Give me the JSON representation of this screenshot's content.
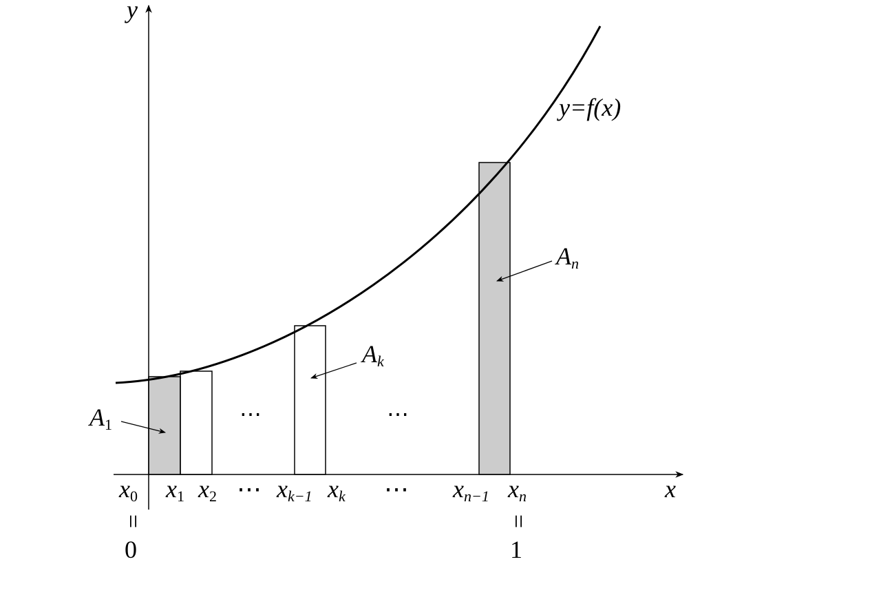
{
  "axes": {
    "y_label": "y",
    "x_label": "x"
  },
  "curve_label": "y=f(x)",
  "areas": [
    {
      "main": "A",
      "sub": "1"
    },
    {
      "main": "A",
      "sub": "k"
    },
    {
      "main": "A",
      "sub": "n"
    }
  ],
  "x_labels": [
    {
      "main": "x",
      "sub": "0"
    },
    {
      "main": "x",
      "sub": "1"
    },
    {
      "main": "x",
      "sub": "2"
    },
    {
      "main": "⋯"
    },
    {
      "main": "x",
      "sub": "k−1"
    },
    {
      "main": "x",
      "sub": "k"
    },
    {
      "main": "⋯"
    },
    {
      "main": "x",
      "sub": "n−1"
    },
    {
      "main": "x",
      "sub": "n"
    }
  ],
  "inner_dots": [
    "⋯",
    "⋯"
  ],
  "equals": [
    "=",
    "="
  ],
  "endpoints": [
    "0",
    "1"
  ]
}
